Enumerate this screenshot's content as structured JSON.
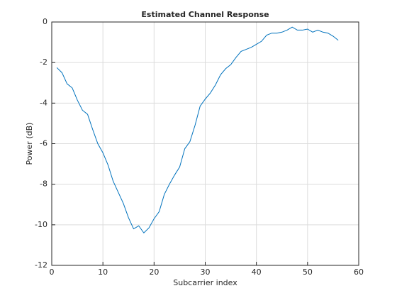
{
  "chart_data": {
    "type": "line",
    "title": "Estimated Channel Response",
    "x_label": "Subcarrier index",
    "y_label": "Power (dB)",
    "x": [
      1,
      2,
      3,
      4,
      5,
      6,
      7,
      8,
      9,
      10,
      11,
      12,
      13,
      14,
      15,
      16,
      17,
      18,
      19,
      20,
      21,
      22,
      23,
      24,
      25,
      26,
      27,
      28,
      29,
      30,
      31,
      32,
      33,
      34,
      35,
      36,
      37,
      38,
      39,
      40,
      41,
      42,
      43,
      44,
      45,
      46,
      47,
      48,
      49,
      50,
      51,
      52,
      53,
      54,
      55,
      56
    ],
    "series": [
      {
        "name": "Power",
        "color": "#0072bd",
        "values": [
          -2.25,
          -2.5,
          -3.05,
          -3.25,
          -3.85,
          -4.35,
          -4.55,
          -5.3,
          -6.0,
          -6.45,
          -7.05,
          -7.85,
          -8.4,
          -8.95,
          -9.65,
          -10.2,
          -10.05,
          -10.4,
          -10.15,
          -9.7,
          -9.35,
          -8.5,
          -8.0,
          -7.55,
          -7.15,
          -6.25,
          -5.9,
          -5.1,
          -4.15,
          -3.8,
          -3.5,
          -3.1,
          -2.6,
          -2.3,
          -2.1,
          -1.75,
          -1.45,
          -1.35,
          -1.25,
          -1.1,
          -0.95,
          -0.65,
          -0.55,
          -0.55,
          -0.5,
          -0.4,
          -0.25,
          -0.4,
          -0.4,
          -0.35,
          -0.5,
          -0.4,
          -0.5,
          -0.55,
          -0.7,
          -0.9
        ]
      }
    ],
    "xlim": [
      0,
      60
    ],
    "xticks": [
      0,
      10,
      20,
      30,
      40,
      50,
      60
    ],
    "ylim": [
      -12,
      0
    ],
    "yticks": [
      -12,
      -10,
      -8,
      -6,
      -4,
      -2,
      0
    ],
    "grid": true
  }
}
